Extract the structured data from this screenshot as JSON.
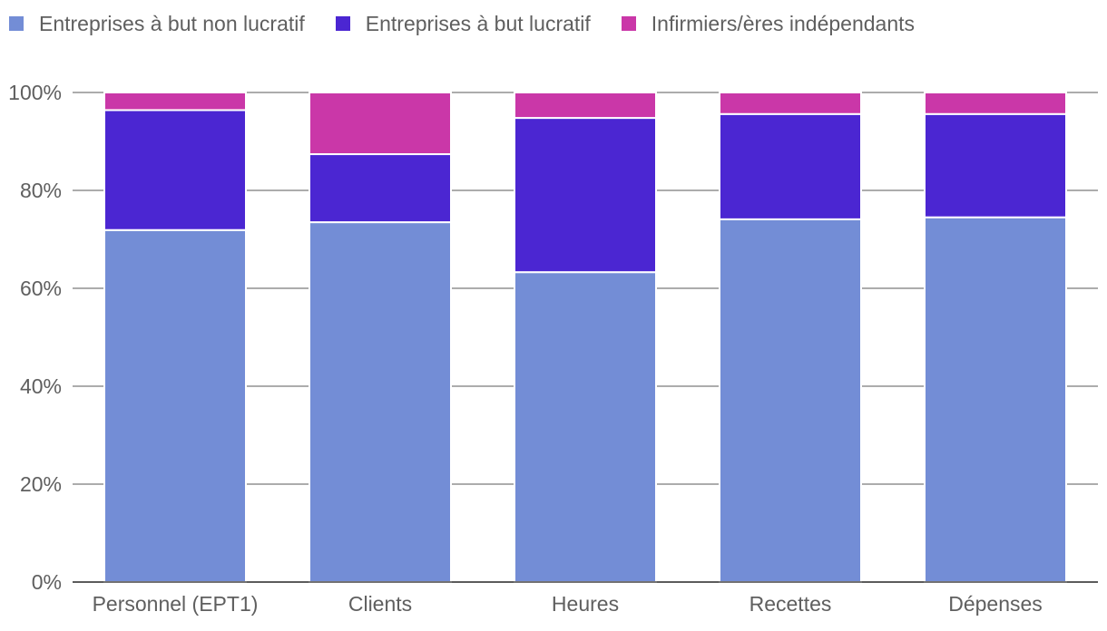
{
  "chart_data": {
    "type": "bar",
    "stacked": true,
    "percent": true,
    "categories": [
      "Personnel (EPT1)",
      "Clients",
      "Heures",
      "Recettes",
      "Dépenses"
    ],
    "series": [
      {
        "name": "Entreprises à but non lucratif",
        "color": "#738dd6",
        "values": [
          71.9,
          73.5,
          63.3,
          74.1,
          74.5
        ]
      },
      {
        "name": "Entreprises à but lucratif",
        "color": "#4b26d2",
        "values": [
          24.5,
          13.9,
          31.5,
          21.5,
          21.1
        ]
      },
      {
        "name": "Infirmiers/ères indépendants",
        "color": "#ca37a8",
        "values": [
          3.6,
          12.6,
          5.2,
          4.4,
          4.4
        ]
      }
    ],
    "ylim": [
      0,
      100
    ],
    "yticks": [
      "0%",
      "20%",
      "40%",
      "60%",
      "80%",
      "100%"
    ],
    "grid": true,
    "legend": "top-left",
    "title": "",
    "xlabel": "",
    "ylabel": ""
  }
}
